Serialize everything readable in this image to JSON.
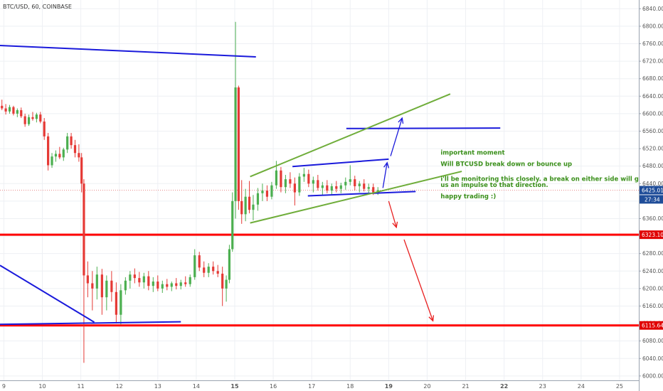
{
  "chart_data": {
    "type": "candlestick",
    "title": "BTC/USD, 60, COINBASE",
    "y_axis": {
      "min": 5990,
      "max": 6860,
      "ticks": [
        6840,
        6800,
        6760,
        6720,
        6680,
        6640,
        6600,
        6560,
        6520,
        6480,
        6440,
        6400,
        6360,
        6320,
        6280,
        6240,
        6200,
        6160,
        6120,
        6080,
        6040,
        6000
      ],
      "tick_labels": [
        "6840.00",
        "6800.00",
        "6760.00",
        "6720.00",
        "6680.00",
        "6640.00",
        "6600.00",
        "6560.00",
        "6520.00",
        "6480.00",
        "6440.00",
        "6400.00",
        "6360.00",
        "6320.00",
        "6280.00",
        "6240.00",
        "6200.00",
        "6160.00",
        "6120.00",
        "6080.00",
        "6040.00",
        "6000.00"
      ]
    },
    "x_axis": {
      "ticks": [
        "9",
        "10",
        "11",
        "12",
        "13",
        "14",
        "15",
        "16",
        "17",
        "18",
        "19",
        "20",
        "21",
        "22",
        "23",
        "24",
        "25"
      ],
      "bold_ticks": [
        "15",
        "19",
        "22"
      ],
      "day_start": 8.9,
      "day_end": 25.5
    },
    "grid": true,
    "price_labels": [
      {
        "value": 6425.01,
        "text": "6425.01",
        "color": "#1f4d99"
      },
      {
        "value": 6323.1,
        "text": "6323.10",
        "color": "#e00000"
      },
      {
        "value": 6115.64,
        "text": "6115.64",
        "color": "#e00000"
      }
    ],
    "countdown_label": {
      "value": 6404,
      "text": "27:34",
      "color": "#1f4d99"
    },
    "current_price": 6425.01,
    "horizontal_levels": [
      {
        "value": 6323.1,
        "color": "#ff0000"
      },
      {
        "value": 6115.64,
        "color": "#ff0000"
      }
    ],
    "trend_lines": [
      {
        "x1": 8.9,
        "y1": 6756,
        "x2": 15.55,
        "y2": 6730,
        "color": "#1a1adb"
      },
      {
        "x1": 8.9,
        "y1": 6253,
        "x2": 11.35,
        "y2": 6123,
        "color": "#1a1adb"
      },
      {
        "x1": 8.9,
        "y1": 6118,
        "x2": 13.6,
        "y2": 6124,
        "color": "#1a1adb"
      },
      {
        "x1": 16.5,
        "y1": 6479,
        "x2": 19.0,
        "y2": 6496,
        "color": "#1a1adb"
      },
      {
        "x1": 16.9,
        "y1": 6412,
        "x2": 19.7,
        "y2": 6422,
        "color": "#1a1adb"
      },
      {
        "x1": 17.9,
        "y1": 6566,
        "x2": 21.9,
        "y2": 6567,
        "color": "#1a1adb"
      },
      {
        "x1": 15.4,
        "y1": 6456,
        "x2": 20.6,
        "y2": 6645,
        "color": "#6fad3a"
      },
      {
        "x1": 15.4,
        "y1": 6350,
        "x2": 20.9,
        "y2": 6468,
        "color": "#6fad3a"
      }
    ],
    "arrows": [
      {
        "x1": 19.05,
        "y1": 6503,
        "x2": 19.35,
        "y2": 6590,
        "color": "#1a1adb"
      },
      {
        "x1": 18.85,
        "y1": 6430,
        "x2": 18.96,
        "y2": 6488,
        "color": "#1a1adb"
      },
      {
        "x1": 19.0,
        "y1": 6400,
        "x2": 19.2,
        "y2": 6340,
        "color": "#e82020"
      },
      {
        "x1": 19.4,
        "y1": 6312,
        "x2": 20.15,
        "y2": 6126,
        "color": "#e82020"
      }
    ],
    "annotations": [
      {
        "text": "important moment",
        "x": 20.35,
        "y": 6506
      },
      {
        "text": "Will BTCUSD break down or bounce up",
        "x": 20.35,
        "y": 6480
      },
      {
        "text": "i'll be monitoring this closely. a break on either side will give",
        "x": 20.35,
        "y": 6446
      },
      {
        "text": "us an impulse to that direction.",
        "x": 20.35,
        "y": 6432
      },
      {
        "text": "happy trading :)",
        "x": 20.35,
        "y": 6406
      }
    ],
    "candles": [
      {
        "t": 8.95,
        "o": 6618,
        "h": 6632,
        "l": 6608,
        "c": 6612
      },
      {
        "t": 9.05,
        "o": 6612,
        "h": 6622,
        "l": 6598,
        "c": 6605
      },
      {
        "t": 9.15,
        "o": 6605,
        "h": 6620,
        "l": 6600,
        "c": 6615
      },
      {
        "t": 9.25,
        "o": 6615,
        "h": 6618,
        "l": 6596,
        "c": 6600
      },
      {
        "t": 9.35,
        "o": 6600,
        "h": 6612,
        "l": 6592,
        "c": 6608
      },
      {
        "t": 9.45,
        "o": 6608,
        "h": 6614,
        "l": 6590,
        "c": 6594
      },
      {
        "t": 9.55,
        "o": 6594,
        "h": 6600,
        "l": 6570,
        "c": 6576
      },
      {
        "t": 9.65,
        "o": 6576,
        "h": 6598,
        "l": 6572,
        "c": 6592
      },
      {
        "t": 9.75,
        "o": 6592,
        "h": 6604,
        "l": 6584,
        "c": 6588
      },
      {
        "t": 9.85,
        "o": 6588,
        "h": 6602,
        "l": 6580,
        "c": 6598
      },
      {
        "t": 9.95,
        "o": 6598,
        "h": 6604,
        "l": 6578,
        "c": 6582
      },
      {
        "t": 10.05,
        "o": 6582,
        "h": 6590,
        "l": 6540,
        "c": 6548
      },
      {
        "t": 10.15,
        "o": 6548,
        "h": 6556,
        "l": 6470,
        "c": 6482
      },
      {
        "t": 10.25,
        "o": 6482,
        "h": 6510,
        "l": 6476,
        "c": 6502
      },
      {
        "t": 10.35,
        "o": 6502,
        "h": 6516,
        "l": 6490,
        "c": 6508
      },
      {
        "t": 10.45,
        "o": 6508,
        "h": 6524,
        "l": 6496,
        "c": 6500
      },
      {
        "t": 10.55,
        "o": 6500,
        "h": 6522,
        "l": 6492,
        "c": 6518
      },
      {
        "t": 10.65,
        "o": 6518,
        "h": 6556,
        "l": 6510,
        "c": 6548
      },
      {
        "t": 10.75,
        "o": 6548,
        "h": 6556,
        "l": 6520,
        "c": 6528
      },
      {
        "t": 10.85,
        "o": 6528,
        "h": 6540,
        "l": 6500,
        "c": 6510
      },
      {
        "t": 10.95,
        "o": 6510,
        "h": 6530,
        "l": 6490,
        "c": 6500
      },
      {
        "t": 11.02,
        "o": 6500,
        "h": 6510,
        "l": 6420,
        "c": 6440
      },
      {
        "t": 11.08,
        "o": 6440,
        "h": 6450,
        "l": 6030,
        "c": 6230
      },
      {
        "t": 11.18,
        "o": 6230,
        "h": 6262,
        "l": 6180,
        "c": 6212
      },
      {
        "t": 11.3,
        "o": 6212,
        "h": 6240,
        "l": 6150,
        "c": 6200
      },
      {
        "t": 11.42,
        "o": 6200,
        "h": 6250,
        "l": 6175,
        "c": 6232
      },
      {
        "t": 11.55,
        "o": 6232,
        "h": 6245,
        "l": 6140,
        "c": 6180
      },
      {
        "t": 11.67,
        "o": 6180,
        "h": 6230,
        "l": 6150,
        "c": 6218
      },
      {
        "t": 11.8,
        "o": 6218,
        "h": 6240,
        "l": 6170,
        "c": 6192
      },
      {
        "t": 11.92,
        "o": 6192,
        "h": 6214,
        "l": 6120,
        "c": 6140
      },
      {
        "t": 12.04,
        "o": 6140,
        "h": 6210,
        "l": 6118,
        "c": 6196
      },
      {
        "t": 12.16,
        "o": 6196,
        "h": 6226,
        "l": 6186,
        "c": 6218
      },
      {
        "t": 12.28,
        "o": 6218,
        "h": 6240,
        "l": 6200,
        "c": 6232
      },
      {
        "t": 12.4,
        "o": 6232,
        "h": 6246,
        "l": 6212,
        "c": 6224
      },
      {
        "t": 12.52,
        "o": 6224,
        "h": 6238,
        "l": 6204,
        "c": 6214
      },
      {
        "t": 12.64,
        "o": 6214,
        "h": 6236,
        "l": 6200,
        "c": 6228
      },
      {
        "t": 12.76,
        "o": 6228,
        "h": 6240,
        "l": 6196,
        "c": 6206
      },
      {
        "t": 12.88,
        "o": 6206,
        "h": 6226,
        "l": 6192,
        "c": 6216
      },
      {
        "t": 13.0,
        "o": 6216,
        "h": 6230,
        "l": 6194,
        "c": 6200
      },
      {
        "t": 13.12,
        "o": 6200,
        "h": 6218,
        "l": 6190,
        "c": 6210
      },
      {
        "t": 13.24,
        "o": 6210,
        "h": 6222,
        "l": 6196,
        "c": 6204
      },
      {
        "t": 13.36,
        "o": 6204,
        "h": 6216,
        "l": 6194,
        "c": 6212
      },
      {
        "t": 13.48,
        "o": 6212,
        "h": 6224,
        "l": 6198,
        "c": 6206
      },
      {
        "t": 13.6,
        "o": 6206,
        "h": 6220,
        "l": 6198,
        "c": 6214
      },
      {
        "t": 13.72,
        "o": 6214,
        "h": 6228,
        "l": 6204,
        "c": 6210
      },
      {
        "t": 13.84,
        "o": 6210,
        "h": 6232,
        "l": 6204,
        "c": 6226
      },
      {
        "t": 13.96,
        "o": 6226,
        "h": 6290,
        "l": 6220,
        "c": 6276
      },
      {
        "t": 14.08,
        "o": 6276,
        "h": 6284,
        "l": 6240,
        "c": 6248
      },
      {
        "t": 14.2,
        "o": 6248,
        "h": 6262,
        "l": 6226,
        "c": 6236
      },
      {
        "t": 14.32,
        "o": 6236,
        "h": 6258,
        "l": 6226,
        "c": 6250
      },
      {
        "t": 14.44,
        "o": 6250,
        "h": 6262,
        "l": 6232,
        "c": 6240
      },
      {
        "t": 14.56,
        "o": 6240,
        "h": 6254,
        "l": 6226,
        "c": 6234
      },
      {
        "t": 14.68,
        "o": 6234,
        "h": 6250,
        "l": 6160,
        "c": 6200
      },
      {
        "t": 14.78,
        "o": 6200,
        "h": 6230,
        "l": 6170,
        "c": 6220
      },
      {
        "t": 14.86,
        "o": 6220,
        "h": 6300,
        "l": 6212,
        "c": 6290
      },
      {
        "t": 14.94,
        "o": 6290,
        "h": 6420,
        "l": 6284,
        "c": 6400
      },
      {
        "t": 15.02,
        "o": 6400,
        "h": 6810,
        "l": 6360,
        "c": 6660
      },
      {
        "t": 15.1,
        "o": 6660,
        "h": 6664,
        "l": 6380,
        "c": 6400
      },
      {
        "t": 15.18,
        "o": 6400,
        "h": 6448,
        "l": 6348,
        "c": 6370
      },
      {
        "t": 15.28,
        "o": 6370,
        "h": 6428,
        "l": 6354,
        "c": 6410
      },
      {
        "t": 15.38,
        "o": 6410,
        "h": 6446,
        "l": 6372,
        "c": 6380
      },
      {
        "t": 15.48,
        "o": 6380,
        "h": 6414,
        "l": 6356,
        "c": 6392
      },
      {
        "t": 15.6,
        "o": 6392,
        "h": 6430,
        "l": 6378,
        "c": 6418
      },
      {
        "t": 15.72,
        "o": 6418,
        "h": 6440,
        "l": 6400,
        "c": 6424
      },
      {
        "t": 15.84,
        "o": 6424,
        "h": 6436,
        "l": 6400,
        "c": 6410
      },
      {
        "t": 15.96,
        "o": 6410,
        "h": 6444,
        "l": 6404,
        "c": 6436
      },
      {
        "t": 16.08,
        "o": 6436,
        "h": 6492,
        "l": 6428,
        "c": 6470
      },
      {
        "t": 16.2,
        "o": 6470,
        "h": 6478,
        "l": 6420,
        "c": 6432
      },
      {
        "t": 16.32,
        "o": 6432,
        "h": 6460,
        "l": 6418,
        "c": 6450
      },
      {
        "t": 16.44,
        "o": 6450,
        "h": 6466,
        "l": 6430,
        "c": 6440
      },
      {
        "t": 16.56,
        "o": 6440,
        "h": 6454,
        "l": 6390,
        "c": 6420
      },
      {
        "t": 16.68,
        "o": 6420,
        "h": 6464,
        "l": 6412,
        "c": 6456
      },
      {
        "t": 16.8,
        "o": 6456,
        "h": 6476,
        "l": 6444,
        "c": 6462
      },
      {
        "t": 16.92,
        "o": 6462,
        "h": 6472,
        "l": 6432,
        "c": 6440
      },
      {
        "t": 17.04,
        "o": 6440,
        "h": 6456,
        "l": 6420,
        "c": 6448
      },
      {
        "t": 17.16,
        "o": 6448,
        "h": 6460,
        "l": 6424,
        "c": 6430
      },
      {
        "t": 17.28,
        "o": 6430,
        "h": 6444,
        "l": 6412,
        "c": 6436
      },
      {
        "t": 17.4,
        "o": 6436,
        "h": 6448,
        "l": 6418,
        "c": 6424
      },
      {
        "t": 17.52,
        "o": 6424,
        "h": 6440,
        "l": 6414,
        "c": 6434
      },
      {
        "t": 17.64,
        "o": 6434,
        "h": 6446,
        "l": 6420,
        "c": 6428
      },
      {
        "t": 17.76,
        "o": 6428,
        "h": 6442,
        "l": 6418,
        "c": 6436
      },
      {
        "t": 17.88,
        "o": 6436,
        "h": 6454,
        "l": 6426,
        "c": 6444
      },
      {
        "t": 18.0,
        "o": 6444,
        "h": 6482,
        "l": 6436,
        "c": 6450
      },
      {
        "t": 18.12,
        "o": 6450,
        "h": 6458,
        "l": 6424,
        "c": 6434
      },
      {
        "t": 18.24,
        "o": 6434,
        "h": 6446,
        "l": 6420,
        "c": 6440
      },
      {
        "t": 18.36,
        "o": 6440,
        "h": 6450,
        "l": 6422,
        "c": 6428
      },
      {
        "t": 18.48,
        "o": 6428,
        "h": 6440,
        "l": 6416,
        "c": 6432
      },
      {
        "t": 18.6,
        "o": 6432,
        "h": 6440,
        "l": 6414,
        "c": 6420
      },
      {
        "t": 18.72,
        "o": 6420,
        "h": 6432,
        "l": 6414,
        "c": 6425
      }
    ]
  }
}
